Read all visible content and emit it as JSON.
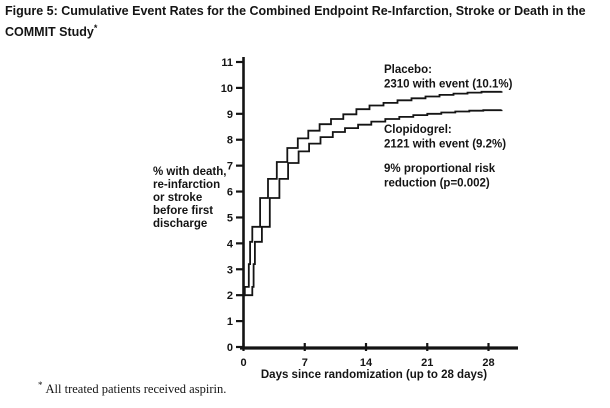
{
  "title": {
    "text": "Figure 5: Cumulative Event Rates for the Combined Endpoint Re-Infarction, Stroke or Death in the COMMIT Study",
    "sup": "*"
  },
  "footnote": {
    "sup": "*",
    "text": "All treated patients received aspirin."
  },
  "colors": {
    "ink": "#141414",
    "background": "#ffffff"
  },
  "chart_data": {
    "type": "line",
    "subtype": "step",
    "grid": false,
    "x_axis": {
      "label": "Days since randomization (up to 28 days)",
      "ticks": [
        0,
        7,
        14,
        21,
        28
      ],
      "range": [
        0,
        31
      ]
    },
    "y_axis": {
      "label_lines": [
        "% with death,",
        "re-infarction",
        "or stroke",
        "before first",
        "discharge"
      ],
      "ticks": [
        0,
        1,
        2,
        3,
        4,
        5,
        6,
        7,
        8,
        9,
        10,
        11
      ],
      "range": [
        0,
        11
      ]
    },
    "series": [
      {
        "name": "Placebo",
        "final_pct": 10.1,
        "n_with_event": 2310,
        "points": [
          [
            0,
            2.0
          ],
          [
            0.15,
            2.32
          ],
          [
            0.6,
            3.2
          ],
          [
            0.75,
            4.06
          ],
          [
            1.0,
            4.64
          ],
          [
            1.9,
            5.75
          ],
          [
            2.8,
            6.49
          ],
          [
            3.8,
            7.14
          ],
          [
            5.0,
            7.68
          ],
          [
            6.2,
            8.05
          ],
          [
            7.4,
            8.35
          ],
          [
            8.7,
            8.6
          ],
          [
            10.0,
            8.8
          ],
          [
            11.4,
            8.98
          ],
          [
            12.9,
            9.18
          ],
          [
            14.4,
            9.32
          ],
          [
            16.0,
            9.42
          ],
          [
            17.6,
            9.52
          ],
          [
            19.2,
            9.6
          ],
          [
            20.8,
            9.67
          ],
          [
            22.4,
            9.73
          ],
          [
            24.0,
            9.78
          ],
          [
            25.6,
            9.82
          ],
          [
            27.2,
            9.85
          ],
          [
            29.5,
            9.87
          ]
        ]
      },
      {
        "name": "Clopidogrel",
        "final_pct": 9.2,
        "n_with_event": 2121,
        "points": [
          [
            0,
            2.0
          ],
          [
            1.0,
            2.32
          ],
          [
            1.15,
            3.2
          ],
          [
            1.3,
            4.06
          ],
          [
            2.1,
            4.64
          ],
          [
            3.0,
            5.75
          ],
          [
            4.1,
            6.49
          ],
          [
            5.1,
            7.1
          ],
          [
            6.3,
            7.55
          ],
          [
            7.5,
            7.85
          ],
          [
            8.8,
            8.1
          ],
          [
            10.2,
            8.3
          ],
          [
            11.6,
            8.45
          ],
          [
            13.1,
            8.58
          ],
          [
            14.6,
            8.7
          ],
          [
            16.2,
            8.8
          ],
          [
            17.8,
            8.88
          ],
          [
            19.4,
            8.95
          ],
          [
            21.0,
            9.0
          ],
          [
            22.6,
            9.05
          ],
          [
            24.2,
            9.09
          ],
          [
            25.8,
            9.12
          ],
          [
            27.4,
            9.14
          ],
          [
            29.5,
            9.15
          ]
        ]
      }
    ],
    "annotations": [
      {
        "lines": [
          "Placebo:",
          "2310 with event (10.1%)"
        ]
      },
      {
        "lines": [
          "Clopidogrel:",
          "2121 with event (9.2%)"
        ]
      },
      {
        "lines": [
          "9% proportional risk",
          "reduction (p=0.002)"
        ]
      }
    ]
  }
}
